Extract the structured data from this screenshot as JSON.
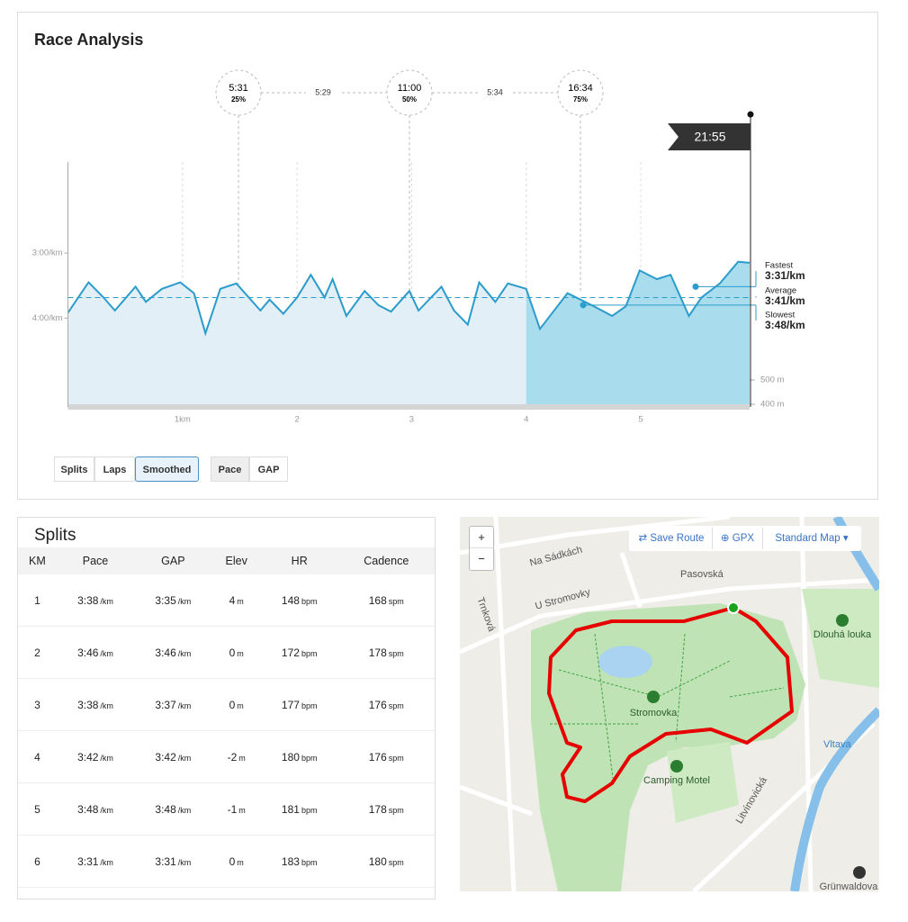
{
  "analysis": {
    "title": "Race Analysis",
    "tabs": [
      "Splits",
      "Laps",
      "Smoothed"
    ],
    "metric_tabs": [
      "Pace",
      "GAP"
    ],
    "markers": [
      {
        "time": "5:31",
        "percent": "25%"
      },
      {
        "time": "11:00",
        "percent": "50%"
      },
      {
        "time": "16:34",
        "percent": "75%"
      }
    ],
    "segment_times": [
      "5:29",
      "5:34"
    ],
    "finish_time": "21:55"
  },
  "chart_data": {
    "type": "area",
    "color": "#2b9ccb",
    "x": [
      0,
      0.18,
      0.31,
      0.41,
      0.59,
      0.68,
      0.82,
      0.98,
      1.1,
      1.2,
      1.33,
      1.47,
      1.68,
      1.76,
      1.88,
      2.0,
      2.12,
      2.24,
      2.31,
      2.43,
      2.59,
      2.71,
      2.82,
      2.98,
      3.06,
      3.26,
      3.37,
      3.49,
      3.59,
      3.73,
      3.84,
      4.0,
      4.12,
      4.36,
      4.59,
      4.75,
      4.87,
      4.99,
      5.14,
      5.26,
      5.42,
      5.53,
      5.69,
      5.85,
      5.95
    ],
    "values": [
      235,
      207,
      221,
      233,
      211,
      225,
      213,
      207,
      217,
      254,
      213,
      208,
      233,
      223,
      236,
      221,
      200,
      221,
      204,
      238,
      215,
      228,
      234,
      215,
      233,
      211,
      233,
      246,
      207,
      225,
      208,
      213,
      250,
      217,
      229,
      238,
      229,
      196,
      204,
      200,
      238,
      221,
      208,
      188,
      189
    ],
    "xlim": [
      0,
      5.95
    ],
    "xticks": [
      {
        "value": 1,
        "label": "1km"
      },
      2,
      3,
      4,
      5
    ],
    "ylim": [
      322,
      96
    ],
    "yticks": [
      {
        "value": 180,
        "label": "3:00/km"
      },
      {
        "value": 240,
        "label": "4:00/km"
      }
    ],
    "y2lim": [
      389,
      1396
    ],
    "y2ticks": [
      {
        "value": 500,
        "label": "500 m"
      },
      {
        "value": 400,
        "label": "400 m"
      }
    ],
    "stats": [
      {
        "name": "Fastest",
        "value": 211,
        "label": "3:31/km"
      },
      {
        "name": "Average",
        "value": 221,
        "label": "3:41/km"
      },
      {
        "name": "Slowest",
        "value": 228,
        "label": "3:48/km"
      }
    ]
  },
  "splits": {
    "title": "Splits",
    "columns": [
      "KM",
      "Pace",
      "GAP",
      "Elev",
      "HR",
      "Cadence"
    ],
    "units": {
      "pace": "/km",
      "gap": "/km",
      "elev": "m",
      "hr": "bpm",
      "cadence": "spm"
    },
    "rows": [
      {
        "km": "1",
        "pace": "3:38",
        "gap": "3:35",
        "elev": "4",
        "hr": "148",
        "cadence": "168"
      },
      {
        "km": "2",
        "pace": "3:46",
        "gap": "3:46",
        "elev": "0",
        "hr": "172",
        "cadence": "178"
      },
      {
        "km": "3",
        "pace": "3:38",
        "gap": "3:37",
        "elev": "0",
        "hr": "177",
        "cadence": "176"
      },
      {
        "km": "4",
        "pace": "3:42",
        "gap": "3:42",
        "elev": "-2",
        "hr": "180",
        "cadence": "176"
      },
      {
        "km": "5",
        "pace": "3:48",
        "gap": "3:48",
        "elev": "-1",
        "hr": "181",
        "cadence": "178"
      },
      {
        "km": "6",
        "pace": "3:31",
        "gap": "3:31",
        "elev": "0",
        "hr": "183",
        "cadence": "180"
      }
    ]
  },
  "map": {
    "zoom_in": "+",
    "zoom_out": "−",
    "save_route": "Save Route",
    "gpx": "GPX",
    "style": "Standard Map",
    "labels": [
      "Na Sádkách",
      "U Stromovky",
      "Trnková",
      "Pasovská",
      "Stromovka",
      "Dlouhá louka",
      "Camping Motel",
      "Litvínovická",
      "Vltava",
      "Grünwaldova"
    ]
  }
}
